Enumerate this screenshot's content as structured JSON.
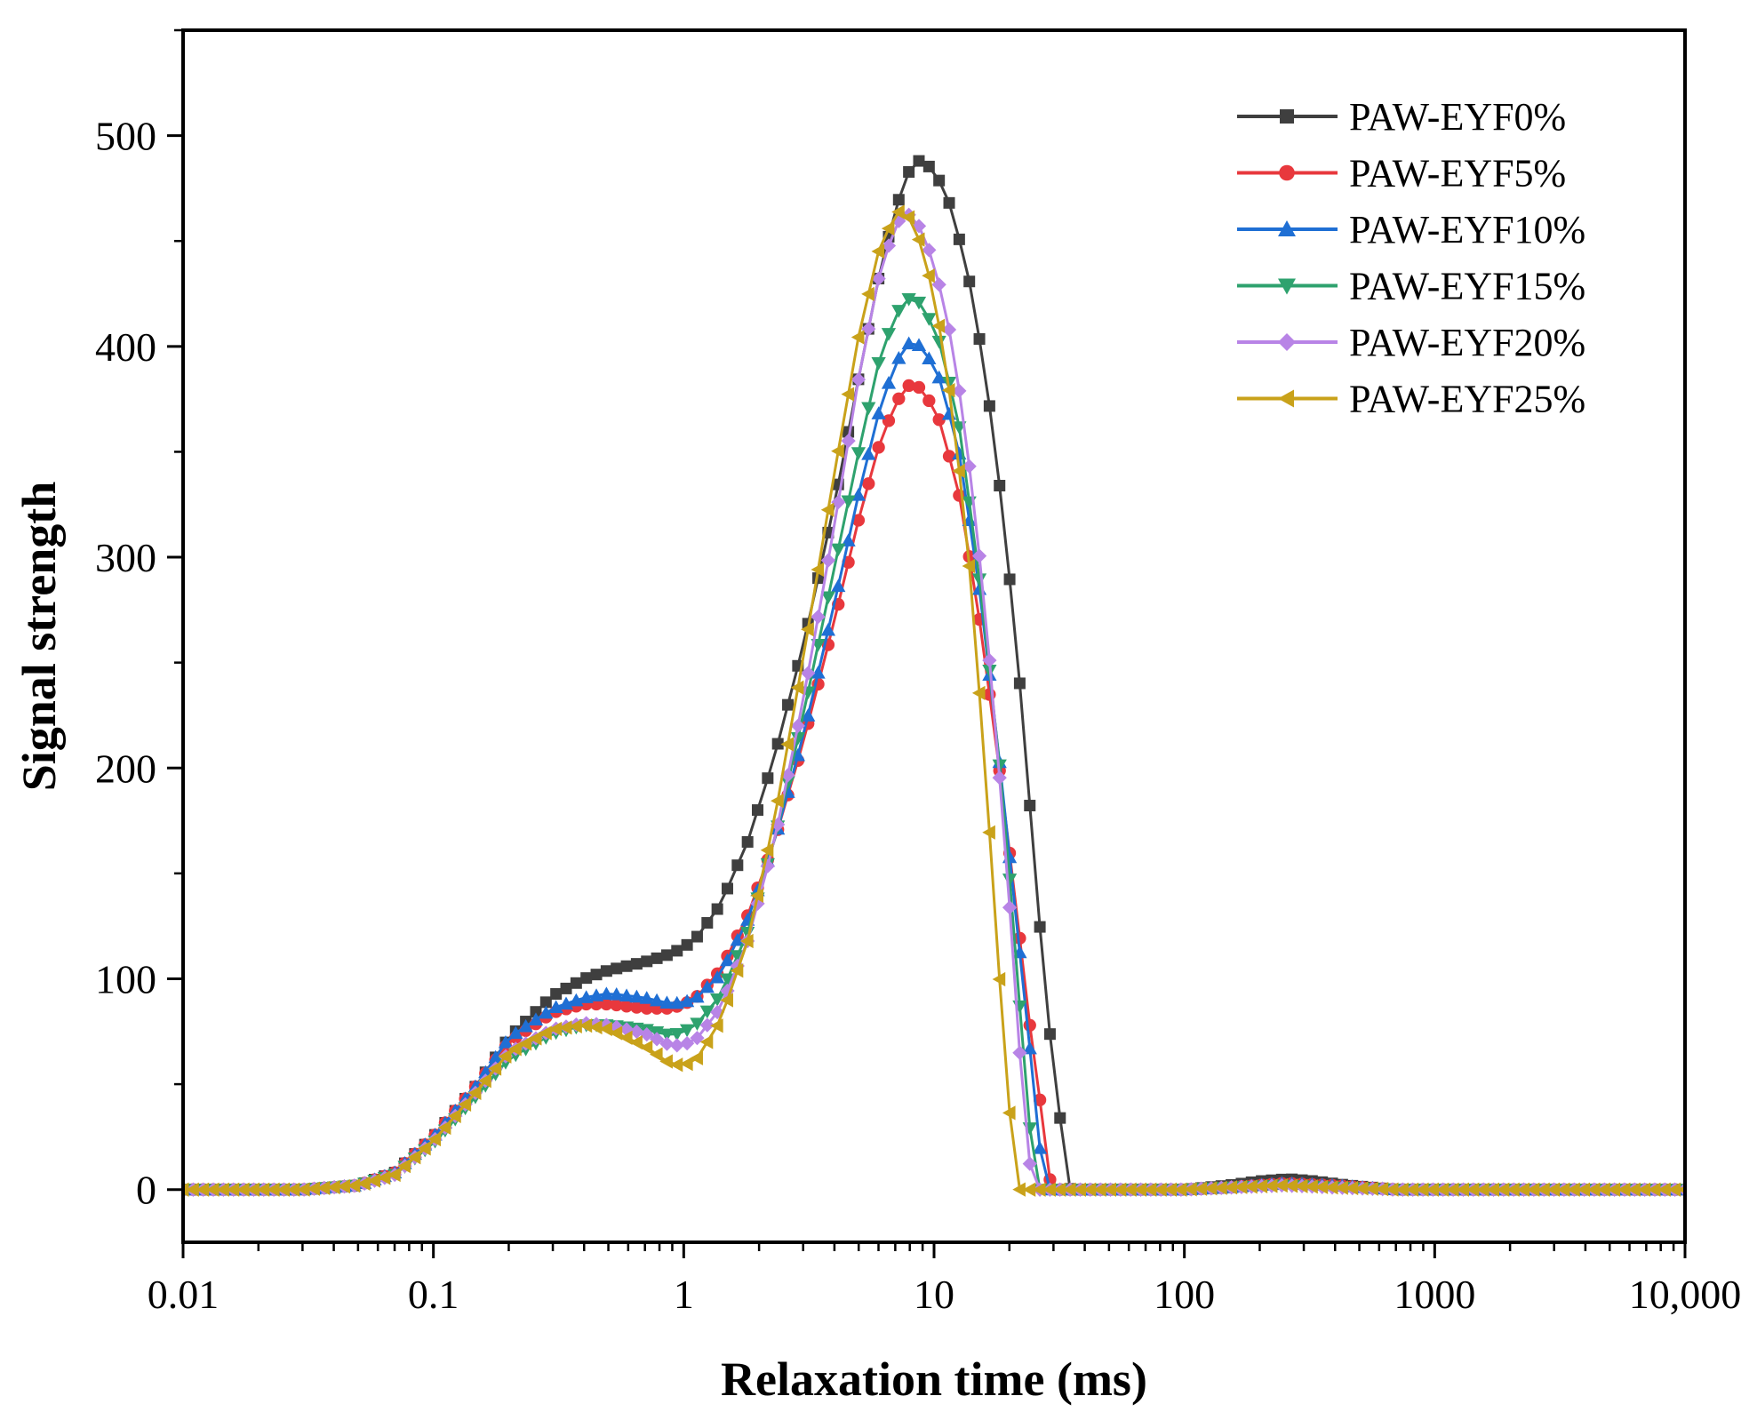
{
  "chart_data": {
    "type": "line",
    "xlabel": "Relaxation time (ms)",
    "ylabel": "Signal strength",
    "x_scale": "log",
    "xlim": [
      0.01,
      10000
    ],
    "ylim": [
      -25,
      550
    ],
    "x_ticks": [
      {
        "value": 0.01,
        "label": "0.01"
      },
      {
        "value": 0.1,
        "label": "0.1"
      },
      {
        "value": 1,
        "label": "1"
      },
      {
        "value": 10,
        "label": "10"
      },
      {
        "value": 100,
        "label": "100"
      },
      {
        "value": 1000,
        "label": "1000"
      },
      {
        "value": 10000,
        "label": "10,000"
      }
    ],
    "y_ticks": [
      {
        "value": 0,
        "label": "0"
      },
      {
        "value": 100,
        "label": "100"
      },
      {
        "value": 200,
        "label": "200"
      },
      {
        "value": 300,
        "label": "300"
      },
      {
        "value": 400,
        "label": "400"
      },
      {
        "value": 500,
        "label": "500"
      }
    ],
    "legend_position": "top-right",
    "grid": false,
    "series": [
      {
        "name": "PAW-EYF0%",
        "color": "#3f3f3f",
        "marker": "square",
        "points": [
          [
            0.01,
            0
          ],
          [
            0.03,
            0
          ],
          [
            0.05,
            2
          ],
          [
            0.07,
            8
          ],
          [
            0.1,
            25
          ],
          [
            0.15,
            50
          ],
          [
            0.2,
            72
          ],
          [
            0.3,
            92
          ],
          [
            0.4,
            100
          ],
          [
            0.5,
            104
          ],
          [
            0.7,
            108
          ],
          [
            0.9,
            112
          ],
          [
            1.1,
            118
          ],
          [
            1.4,
            135
          ],
          [
            1.8,
            165
          ],
          [
            2.3,
            205
          ],
          [
            3,
            258
          ],
          [
            4,
            325
          ],
          [
            5,
            385
          ],
          [
            6,
            432
          ],
          [
            7,
            465
          ],
          [
            8,
            484
          ],
          [
            8.7,
            488
          ],
          [
            10,
            484
          ],
          [
            11.5,
            468
          ],
          [
            13.5,
            438
          ],
          [
            16,
            388
          ],
          [
            19,
            318
          ],
          [
            22,
            240
          ],
          [
            25,
            160
          ],
          [
            28,
            90
          ],
          [
            31,
            45
          ],
          [
            33,
            20
          ],
          [
            35,
            0
          ],
          [
            100,
            0
          ],
          [
            150,
            2
          ],
          [
            200,
            4
          ],
          [
            260,
            5
          ],
          [
            330,
            4
          ],
          [
            450,
            2
          ],
          [
            700,
            0
          ],
          [
            10000,
            0
          ]
        ]
      },
      {
        "name": "PAW-EYF5%",
        "color": "#e8383d",
        "marker": "circle",
        "points": [
          [
            0.01,
            0
          ],
          [
            0.03,
            0
          ],
          [
            0.05,
            2
          ],
          [
            0.07,
            8
          ],
          [
            0.1,
            25
          ],
          [
            0.15,
            50
          ],
          [
            0.2,
            70
          ],
          [
            0.3,
            84
          ],
          [
            0.4,
            88
          ],
          [
            0.5,
            88
          ],
          [
            0.7,
            86
          ],
          [
            0.9,
            86
          ],
          [
            1.1,
            90
          ],
          [
            1.4,
            104
          ],
          [
            1.8,
            130
          ],
          [
            2.3,
            165
          ],
          [
            3,
            212
          ],
          [
            4,
            270
          ],
          [
            5,
            318
          ],
          [
            6,
            352
          ],
          [
            7,
            373
          ],
          [
            8,
            382
          ],
          [
            9,
            380
          ],
          [
            10.5,
            365
          ],
          [
            12.5,
            332
          ],
          [
            15,
            275
          ],
          [
            18,
            205
          ],
          [
            21,
            140
          ],
          [
            24,
            80
          ],
          [
            27,
            35
          ],
          [
            29,
            5
          ],
          [
            30,
            0
          ],
          [
            100,
            0
          ],
          [
            150,
            1
          ],
          [
            250,
            3
          ],
          [
            400,
            2
          ],
          [
            700,
            0
          ],
          [
            10000,
            0
          ]
        ]
      },
      {
        "name": "PAW-EYF10%",
        "color": "#1f6fd4",
        "marker": "triangle-up",
        "points": [
          [
            0.01,
            0
          ],
          [
            0.03,
            0
          ],
          [
            0.05,
            2
          ],
          [
            0.07,
            8
          ],
          [
            0.1,
            25
          ],
          [
            0.15,
            50
          ],
          [
            0.2,
            72
          ],
          [
            0.3,
            86
          ],
          [
            0.4,
            91
          ],
          [
            0.5,
            93
          ],
          [
            0.7,
            91
          ],
          [
            0.9,
            88
          ],
          [
            1.1,
            90
          ],
          [
            1.4,
            102
          ],
          [
            1.8,
            128
          ],
          [
            2.3,
            165
          ],
          [
            3,
            215
          ],
          [
            4,
            278
          ],
          [
            5,
            330
          ],
          [
            6,
            368
          ],
          [
            7,
            392
          ],
          [
            8,
            402
          ],
          [
            9,
            400
          ],
          [
            10.5,
            385
          ],
          [
            12.5,
            352
          ],
          [
            15,
            290
          ],
          [
            18,
            210
          ],
          [
            21,
            135
          ],
          [
            24,
            70
          ],
          [
            26,
            25
          ],
          [
            28,
            3
          ],
          [
            29,
            0
          ],
          [
            100,
            0
          ],
          [
            150,
            1
          ],
          [
            250,
            3
          ],
          [
            400,
            2
          ],
          [
            700,
            0
          ],
          [
            10000,
            0
          ]
        ]
      },
      {
        "name": "PAW-EYF15%",
        "color": "#2ea26e",
        "marker": "triangle-down",
        "points": [
          [
            0.01,
            0
          ],
          [
            0.03,
            0
          ],
          [
            0.05,
            2
          ],
          [
            0.07,
            7
          ],
          [
            0.1,
            22
          ],
          [
            0.15,
            45
          ],
          [
            0.2,
            62
          ],
          [
            0.3,
            74
          ],
          [
            0.4,
            78
          ],
          [
            0.5,
            78
          ],
          [
            0.7,
            76
          ],
          [
            0.9,
            73
          ],
          [
            1.1,
            77
          ],
          [
            1.4,
            92
          ],
          [
            1.8,
            122
          ],
          [
            2.3,
            165
          ],
          [
            3,
            225
          ],
          [
            4,
            295
          ],
          [
            5,
            350
          ],
          [
            6,
            392
          ],
          [
            7,
            415
          ],
          [
            8,
            423
          ],
          [
            9,
            420
          ],
          [
            10.5,
            402
          ],
          [
            12.5,
            365
          ],
          [
            15,
            295
          ],
          [
            18,
            210
          ],
          [
            21,
            120
          ],
          [
            23,
            55
          ],
          [
            25,
            10
          ],
          [
            26,
            0
          ],
          [
            100,
            0
          ],
          [
            150,
            1
          ],
          [
            250,
            2
          ],
          [
            400,
            1
          ],
          [
            700,
            0
          ],
          [
            10000,
            0
          ]
        ]
      },
      {
        "name": "PAW-EYF20%",
        "color": "#b884e6",
        "marker": "diamond",
        "points": [
          [
            0.01,
            0
          ],
          [
            0.03,
            0
          ],
          [
            0.05,
            2
          ],
          [
            0.07,
            7
          ],
          [
            0.1,
            23
          ],
          [
            0.15,
            47
          ],
          [
            0.2,
            65
          ],
          [
            0.3,
            76
          ],
          [
            0.4,
            79
          ],
          [
            0.5,
            78
          ],
          [
            0.7,
            74
          ],
          [
            0.9,
            68
          ],
          [
            1.1,
            70
          ],
          [
            1.4,
            86
          ],
          [
            1.8,
            118
          ],
          [
            2.3,
            165
          ],
          [
            3,
            232
          ],
          [
            4,
            315
          ],
          [
            5,
            385
          ],
          [
            6,
            432
          ],
          [
            7,
            458
          ],
          [
            7.8,
            463
          ],
          [
            8.5,
            460
          ],
          [
            10,
            440
          ],
          [
            12,
            398
          ],
          [
            14.5,
            325
          ],
          [
            17,
            240
          ],
          [
            19.5,
            155
          ],
          [
            21.5,
            80
          ],
          [
            23,
            35
          ],
          [
            24.5,
            5
          ],
          [
            25,
            0
          ],
          [
            100,
            0
          ],
          [
            150,
            1
          ],
          [
            250,
            2
          ],
          [
            400,
            1
          ],
          [
            700,
            0
          ],
          [
            10000,
            0
          ]
        ]
      },
      {
        "name": "PAW-EYF25%",
        "color": "#c9a21a",
        "marker": "triangle-left",
        "points": [
          [
            0.01,
            0
          ],
          [
            0.03,
            0
          ],
          [
            0.05,
            2
          ],
          [
            0.07,
            7
          ],
          [
            0.1,
            23
          ],
          [
            0.15,
            47
          ],
          [
            0.2,
            65
          ],
          [
            0.3,
            76
          ],
          [
            0.4,
            78
          ],
          [
            0.5,
            76
          ],
          [
            0.7,
            68
          ],
          [
            0.9,
            59
          ],
          [
            1.1,
            60
          ],
          [
            1.4,
            80
          ],
          [
            1.8,
            118
          ],
          [
            2.3,
            175
          ],
          [
            3,
            252
          ],
          [
            4,
            340
          ],
          [
            5,
            405
          ],
          [
            6,
            445
          ],
          [
            7,
            463
          ],
          [
            7.6,
            465
          ],
          [
            8.5,
            455
          ],
          [
            10,
            425
          ],
          [
            12,
            365
          ],
          [
            14,
            290
          ],
          [
            16,
            200
          ],
          [
            18,
            110
          ],
          [
            19.5,
            55
          ],
          [
            21,
            5
          ],
          [
            22,
            0
          ],
          [
            100,
            0
          ],
          [
            150,
            1
          ],
          [
            250,
            2
          ],
          [
            400,
            1
          ],
          [
            700,
            0
          ],
          [
            10000,
            0
          ]
        ]
      }
    ]
  }
}
